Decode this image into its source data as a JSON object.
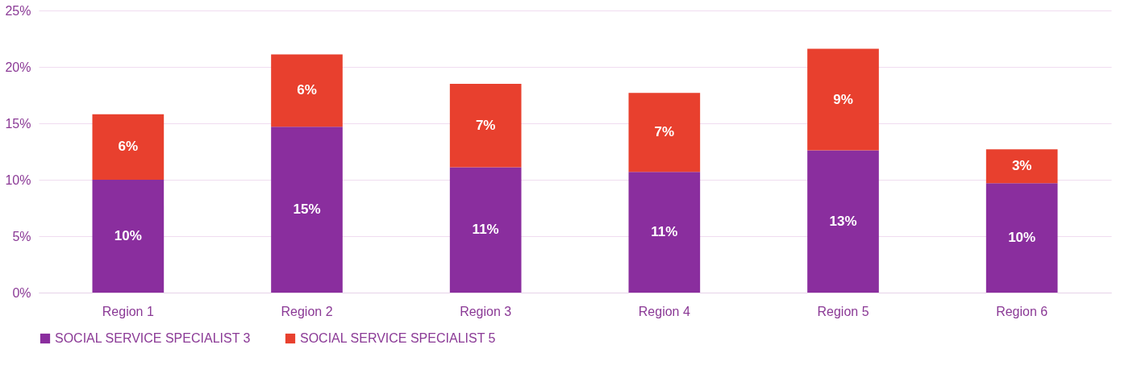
{
  "chart_data": {
    "type": "bar",
    "stacked": true,
    "categories": [
      "Region 1",
      "Region 2",
      "Region 3",
      "Region 4",
      "Region 5",
      "Region 6"
    ],
    "series": [
      {
        "name": "SOCIAL SERVICE SPECIALIST 3",
        "color": "#8a2e9e",
        "values": [
          10.0,
          14.7,
          11.1,
          10.7,
          12.6,
          9.7
        ],
        "value_labels": [
          "10%",
          "15%",
          "11%",
          "11%",
          "13%",
          "10%"
        ]
      },
      {
        "name": "SOCIAL SERVICE SPECIALIST 5",
        "color": "#e8402e",
        "values": [
          5.8,
          6.4,
          7.4,
          7.0,
          9.0,
          3.0
        ],
        "value_labels": [
          "6%",
          "6%",
          "7%",
          "7%",
          "9%",
          "3%"
        ]
      }
    ],
    "ylim": [
      0,
      25
    ],
    "yticks": [
      {
        "value": 0,
        "label": "0%"
      },
      {
        "value": 5,
        "label": "5%"
      },
      {
        "value": 10,
        "label": "10%"
      },
      {
        "value": 15,
        "label": "15%"
      },
      {
        "value": 20,
        "label": "20%"
      },
      {
        "value": 25,
        "label": "25%"
      }
    ],
    "grid": "y",
    "legend": "bottom"
  }
}
